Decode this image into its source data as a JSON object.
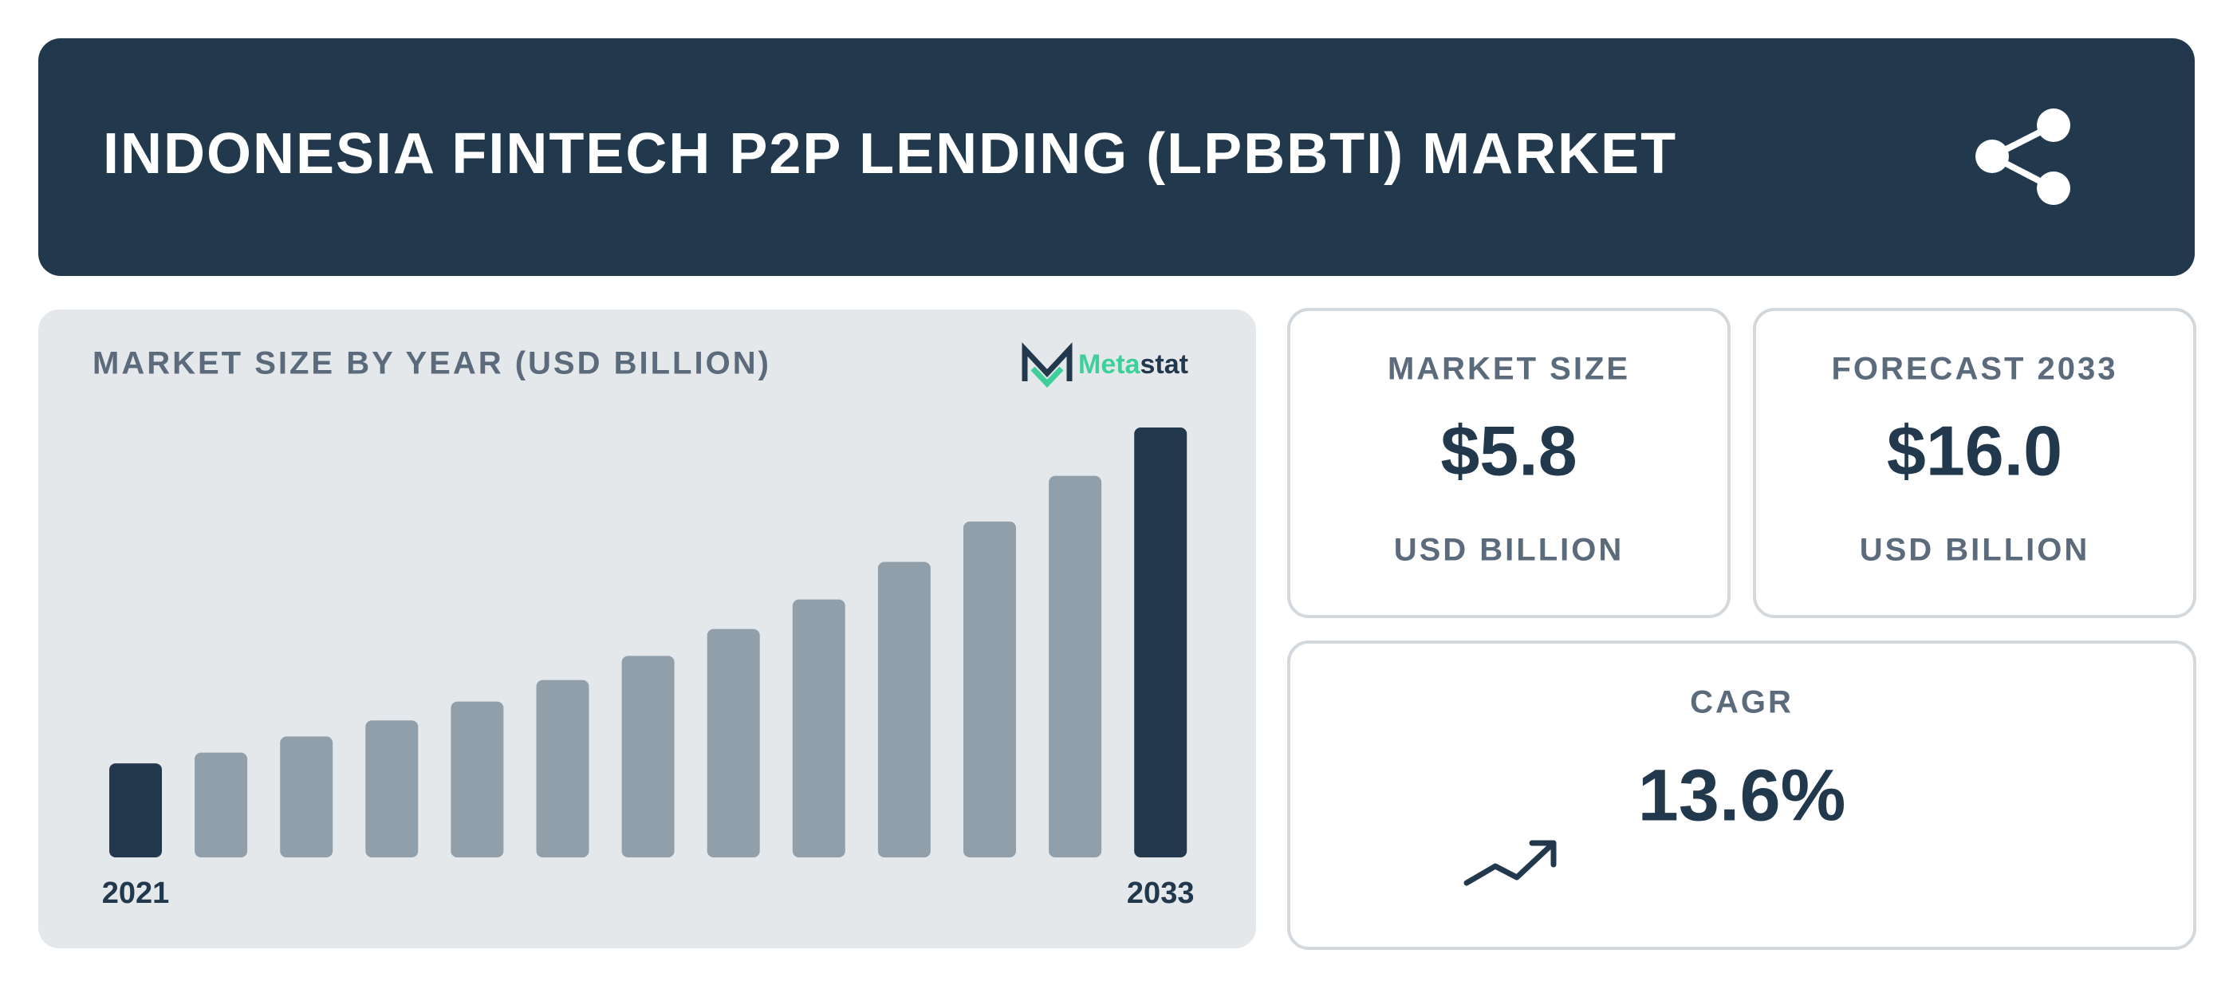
{
  "header": {
    "title": "INDONESIA FINTECH P2P LENDING (LPBBTI) MARKET"
  },
  "logo": {
    "part_1": "Meta",
    "part_2": "stat"
  },
  "chart_data": {
    "type": "bar",
    "title": "MARKET SIZE BY YEAR (USD BILLION)",
    "categories": [
      "2021",
      null,
      null,
      null,
      null,
      null,
      null,
      null,
      null,
      null,
      null,
      null,
      "2033"
    ],
    "values": [
      3.5,
      3.9,
      4.5,
      5.1,
      5.8,
      6.6,
      7.5,
      8.5,
      9.6,
      11.0,
      12.5,
      14.2,
      16.0
    ],
    "colors": [
      "#22394d",
      "#919fab",
      "#919fab",
      "#919fab",
      "#919fab",
      "#919fab",
      "#919fab",
      "#919fab",
      "#919fab",
      "#919fab",
      "#919fab",
      "#919fab",
      "#22394d"
    ]
  },
  "cards": {
    "market_size": {
      "label": "MARKET SIZE",
      "value": "$5.8",
      "unit": "USD BILLION"
    },
    "forecast": {
      "label": "FORECAST 2033",
      "value": "$16.0",
      "unit": "USD BILLION"
    },
    "cagr": {
      "label": "CAGR",
      "value": "13.6%"
    }
  }
}
